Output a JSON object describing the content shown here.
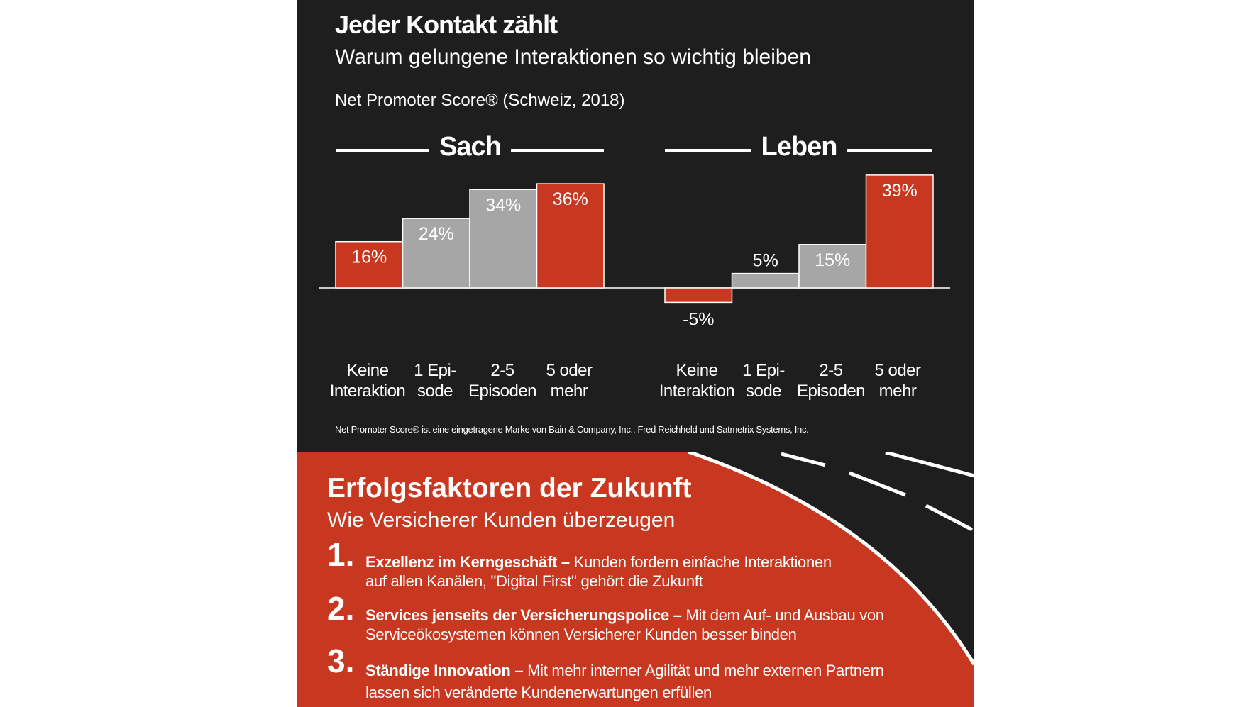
{
  "header": {
    "title": "Jeder Kontakt zählt",
    "subtitle": "Warum gelungene Interaktionen so wichtig bleiben",
    "metric": "Net Promoter Score® (Schweiz, 2018)"
  },
  "chart_data": {
    "type": "bar",
    "categories": [
      "Keine\nInteraktion",
      "1 Epi-\nsode",
      "2-5\nEpisoden",
      "5 oder\nmehr"
    ],
    "groups": [
      {
        "name": "Sach",
        "values": [
          16,
          24,
          34,
          36
        ],
        "labels": [
          "16%",
          "24%",
          "34%",
          "36%"
        ],
        "colors": [
          "#c8371f",
          "#a6a6a6",
          "#a6a6a6",
          "#c8371f"
        ]
      },
      {
        "name": "Leben",
        "values": [
          -5,
          5,
          15,
          39
        ],
        "labels": [
          "-5%",
          "5%",
          "15%",
          "39%"
        ],
        "colors": [
          "#c8371f",
          "#a6a6a6",
          "#a6a6a6",
          "#c8371f"
        ]
      }
    ],
    "unit": "%",
    "grid": false
  },
  "footnote": "Net Promoter Score® ist eine eingetragene Marke von Bain & Company, Inc., Fred Reichheld und Satmetrix Systems, Inc.",
  "success": {
    "title": "Erfolgsfaktoren der Zukunft",
    "subtitle": "Wie Versicherer Kunden überzeugen",
    "items": [
      {
        "number": "1.",
        "bold": "Exzellenz im Kerngeschäft –",
        "line1": " Kunden fordern einfache Interaktionen",
        "line2": "auf allen Kanälen, \"Digital First\" gehört die Zukunft"
      },
      {
        "number": "2.",
        "bold": "Services jenseits der Versicherungspolice –",
        "line1": " Mit dem Auf- und Ausbau von",
        "line2": "Serviceökosystemen können Versicherer Kunden besser binden"
      },
      {
        "number": "3.",
        "bold": "Ständige Innovation –",
        "line1": " Mit mehr interner Agilität und mehr externen Partnern",
        "line2": "lassen sich veränderte Kundenerwartungen erfüllen"
      }
    ]
  },
  "colors": {
    "dark": "#1e1e1e",
    "accent": "#c8371f",
    "neutral": "#a6a6a6"
  }
}
